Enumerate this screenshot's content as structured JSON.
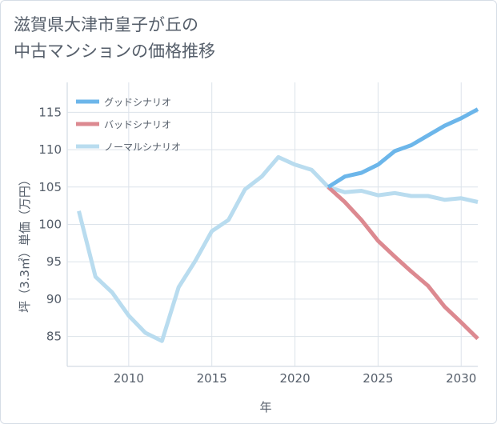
{
  "title": {
    "line1": "滋賀県大津市皇子が丘の",
    "line2": "中古マンションの価格推移"
  },
  "chart_data": {
    "type": "line",
    "xlabel": "年",
    "ylabel": "坪（3.3㎡）単価（万円）",
    "xlim": [
      2006.3,
      2031
    ],
    "ylim": [
      81,
      119
    ],
    "x_ticks": [
      2010,
      2015,
      2020,
      2025,
      2030
    ],
    "y_ticks": [
      85,
      90,
      95,
      100,
      105,
      110,
      115
    ],
    "grid": true,
    "legend_position": "top-left",
    "series": [
      {
        "name": "グッドシナリオ",
        "color": "#6cb6ea",
        "x": [
          2022,
          2023,
          2024,
          2025,
          2026,
          2027,
          2028,
          2029,
          2030,
          2031
        ],
        "y": [
          105.0,
          106.4,
          106.9,
          108.0,
          109.8,
          110.6,
          111.9,
          113.2,
          114.2,
          115.4
        ]
      },
      {
        "name": "バッドシナリオ",
        "color": "#dc8990",
        "x": [
          2022,
          2023,
          2024,
          2025,
          2026,
          2027,
          2028,
          2029,
          2030,
          2031
        ],
        "y": [
          105.0,
          103.0,
          100.6,
          97.8,
          95.7,
          93.7,
          91.8,
          89.0,
          86.9,
          84.7
        ]
      },
      {
        "name": "ノーマルシナリオ",
        "color": "#b9dcef",
        "x": [
          2007,
          2008,
          2009,
          2010,
          2011,
          2012,
          2013,
          2014,
          2015,
          2016,
          2017,
          2018,
          2019,
          2020,
          2021,
          2022,
          2023,
          2024,
          2025,
          2026,
          2027,
          2028,
          2029,
          2030,
          2031
        ],
        "y": [
          101.8,
          93.0,
          90.9,
          87.8,
          85.5,
          84.4,
          91.6,
          95.1,
          99.1,
          100.6,
          104.7,
          106.4,
          109.0,
          108.0,
          107.3,
          105.0,
          104.3,
          104.5,
          103.9,
          104.2,
          103.8,
          103.8,
          103.3,
          103.5,
          103.0
        ]
      }
    ]
  }
}
